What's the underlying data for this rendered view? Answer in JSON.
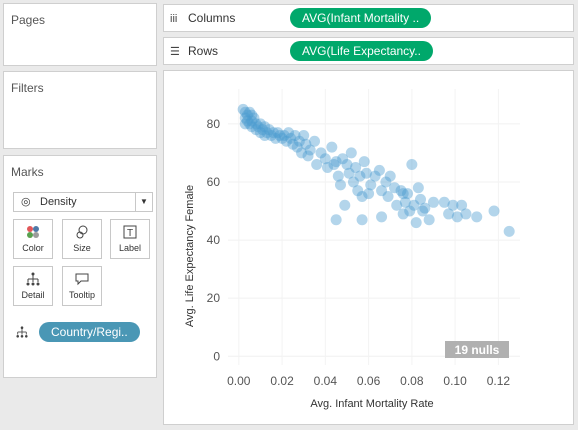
{
  "sidebar": {
    "pages_title": "Pages",
    "filters_title": "Filters",
    "marks_title": "Marks",
    "mark_type": "Density",
    "mark_buttons": [
      {
        "name": "color",
        "label": "Color",
        "icon": "color-dots-icon"
      },
      {
        "name": "size",
        "label": "Size",
        "icon": "size-circles-icon"
      },
      {
        "name": "label",
        "label": "Label",
        "icon": "label-t-icon"
      },
      {
        "name": "detail",
        "label": "Detail",
        "icon": "detail-hierarchy-icon"
      },
      {
        "name": "tooltip",
        "label": "Tooltip",
        "icon": "tooltip-bubble-icon"
      }
    ],
    "detail_pill": "Country/Regi.."
  },
  "shelves": {
    "columns_label": "Columns",
    "columns_pill": "AVG(Infant Mortality ..",
    "rows_label": "Rows",
    "rows_pill": "AVG(Life Expectancy.."
  },
  "colors": {
    "pill_green": "#00a86b",
    "pill_blue": "#4a97b5",
    "mark": "#4a9bd0",
    "nulls_badge": "#b0b0b0"
  },
  "nulls_badge": "19 nulls",
  "chart_data": {
    "type": "scatter",
    "xlabel": "Avg. Infant Mortality Rate",
    "ylabel": "Avg. Life Expectancy Female",
    "xlim": [
      -0.005,
      0.13
    ],
    "ylim": [
      -3,
      92
    ],
    "x_ticks": [
      "0.00",
      "0.02",
      "0.04",
      "0.06",
      "0.08",
      "0.10",
      "0.12"
    ],
    "x_tick_values": [
      0.0,
      0.02,
      0.04,
      0.06,
      0.08,
      0.1,
      0.12
    ],
    "y_ticks": [
      "0",
      "20",
      "40",
      "60",
      "80"
    ],
    "y_tick_values": [
      0,
      20,
      40,
      60,
      80
    ],
    "grid": true,
    "points": [
      [
        0.002,
        85
      ],
      [
        0.003,
        84
      ],
      [
        0.004,
        83
      ],
      [
        0.003,
        82
      ],
      [
        0.005,
        84
      ],
      [
        0.006,
        83
      ],
      [
        0.004,
        81
      ],
      [
        0.005,
        80
      ],
      [
        0.003,
        80
      ],
      [
        0.006,
        81
      ],
      [
        0.007,
        82
      ],
      [
        0.008,
        80
      ],
      [
        0.006,
        79
      ],
      [
        0.008,
        78
      ],
      [
        0.009,
        79
      ],
      [
        0.01,
        80
      ],
      [
        0.011,
        78
      ],
      [
        0.012,
        79
      ],
      [
        0.01,
        77
      ],
      [
        0.012,
        76
      ],
      [
        0.013,
        77
      ],
      [
        0.014,
        78
      ],
      [
        0.015,
        76
      ],
      [
        0.016,
        77
      ],
      [
        0.017,
        75
      ],
      [
        0.018,
        77
      ],
      [
        0.019,
        76
      ],
      [
        0.02,
        75
      ],
      [
        0.021,
        76
      ],
      [
        0.022,
        74
      ],
      [
        0.023,
        77
      ],
      [
        0.024,
        75
      ],
      [
        0.025,
        73
      ],
      [
        0.026,
        76
      ],
      [
        0.027,
        72
      ],
      [
        0.028,
        74
      ],
      [
        0.029,
        70
      ],
      [
        0.03,
        76
      ],
      [
        0.031,
        73
      ],
      [
        0.032,
        69
      ],
      [
        0.033,
        71
      ],
      [
        0.035,
        74
      ],
      [
        0.036,
        66
      ],
      [
        0.038,
        70
      ],
      [
        0.04,
        68
      ],
      [
        0.041,
        65
      ],
      [
        0.043,
        72
      ],
      [
        0.044,
        66
      ],
      [
        0.045,
        67
      ],
      [
        0.046,
        62
      ],
      [
        0.047,
        59
      ],
      [
        0.048,
        68
      ],
      [
        0.05,
        66
      ],
      [
        0.051,
        63
      ],
      [
        0.052,
        70
      ],
      [
        0.053,
        60
      ],
      [
        0.054,
        65
      ],
      [
        0.055,
        57
      ],
      [
        0.056,
        62
      ],
      [
        0.057,
        55
      ],
      [
        0.058,
        67
      ],
      [
        0.059,
        63
      ],
      [
        0.06,
        56
      ],
      [
        0.061,
        59
      ],
      [
        0.063,
        62
      ],
      [
        0.065,
        64
      ],
      [
        0.066,
        57
      ],
      [
        0.068,
        60
      ],
      [
        0.069,
        55
      ],
      [
        0.07,
        62
      ],
      [
        0.072,
        58
      ],
      [
        0.073,
        52
      ],
      [
        0.075,
        57
      ],
      [
        0.076,
        49
      ],
      [
        0.077,
        53
      ],
      [
        0.078,
        56
      ],
      [
        0.079,
        50
      ],
      [
        0.08,
        66
      ],
      [
        0.081,
        52
      ],
      [
        0.082,
        46
      ],
      [
        0.083,
        58
      ],
      [
        0.084,
        54
      ],
      [
        0.085,
        50
      ],
      [
        0.086,
        51
      ],
      [
        0.088,
        47
      ],
      [
        0.09,
        53
      ],
      [
        0.095,
        53
      ],
      [
        0.097,
        49
      ],
      [
        0.099,
        52
      ],
      [
        0.101,
        48
      ],
      [
        0.103,
        52
      ],
      [
        0.105,
        49
      ],
      [
        0.11,
        48
      ],
      [
        0.118,
        50
      ],
      [
        0.125,
        43
      ],
      [
        0.045,
        47
      ],
      [
        0.057,
        47
      ],
      [
        0.076,
        56
      ],
      [
        0.066,
        48
      ],
      [
        0.049,
        52
      ]
    ]
  }
}
